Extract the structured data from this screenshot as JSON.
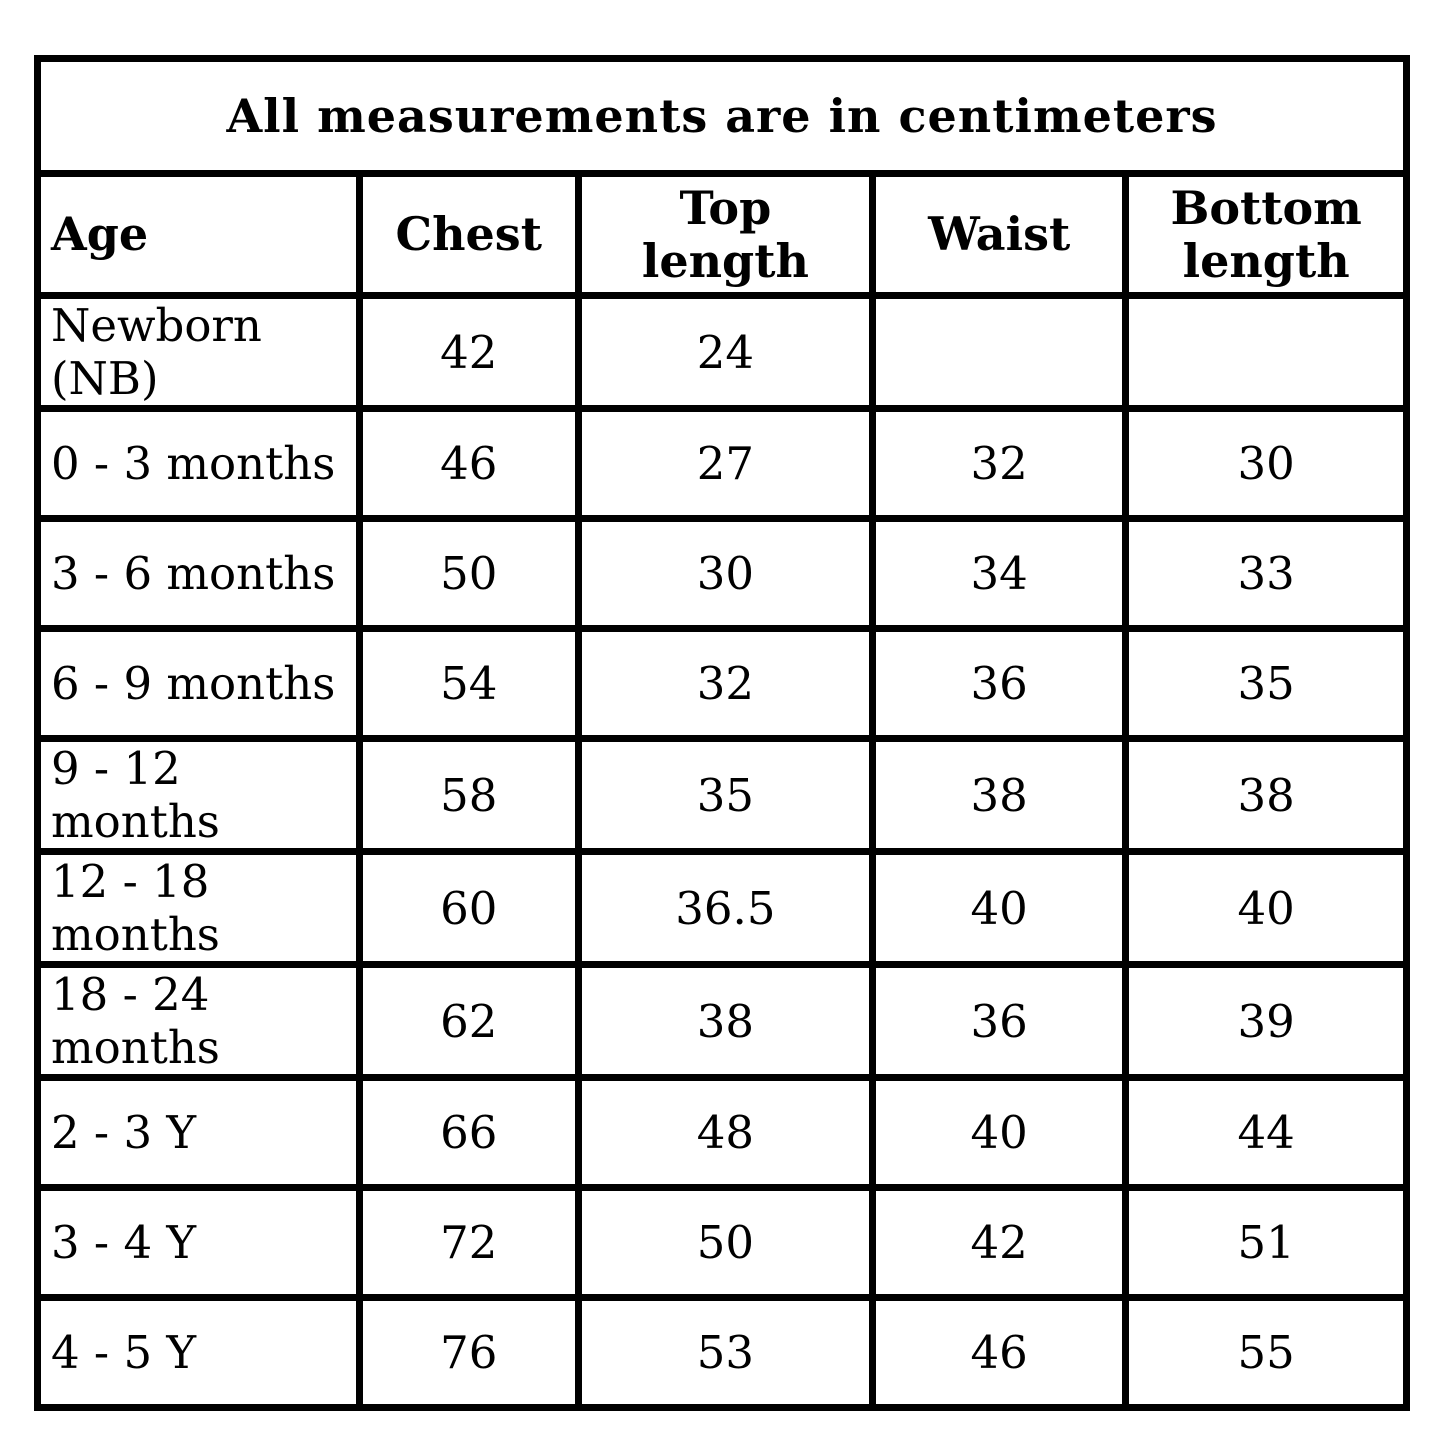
{
  "table": {
    "title": "All measurements are in centimeters",
    "columns": [
      "Age",
      "Chest",
      "Top length",
      "Waist",
      "Bottom length"
    ],
    "rows": [
      [
        "Newborn (NB)",
        "42",
        "24",
        "",
        ""
      ],
      [
        "0 - 3 months",
        "46",
        "27",
        "32",
        "30"
      ],
      [
        "3 - 6 months",
        "50",
        "30",
        "34",
        "33"
      ],
      [
        "6 - 9 months",
        "54",
        "32",
        "36",
        "35"
      ],
      [
        "9 - 12 months",
        "58",
        "35",
        "38",
        "38"
      ],
      [
        "12 - 18 months",
        "60",
        "36.5",
        "40",
        "40"
      ],
      [
        "18 - 24 months",
        "62",
        "38",
        "36",
        "39"
      ],
      [
        "2 - 3 Y",
        "66",
        "48",
        "40",
        "44"
      ],
      [
        "3 - 4 Y",
        "72",
        "50",
        "42",
        "51"
      ],
      [
        "4 - 5 Y",
        "76",
        "53",
        "46",
        "55"
      ]
    ],
    "column_widths_percent": [
      23.5,
      16.0,
      21.5,
      18.5,
      20.5
    ],
    "border_color": "#000000",
    "background_color": "#ffffff"
  }
}
